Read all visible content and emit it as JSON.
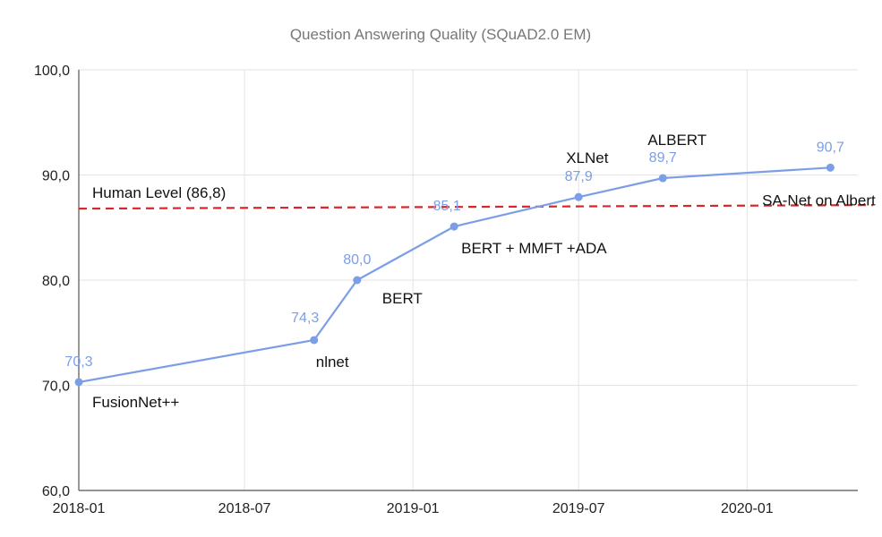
{
  "chart_data": {
    "type": "line",
    "title": "Question Answering Quality (SQuAD2.0 EM)",
    "xlabel": "",
    "ylabel": "",
    "ylim": [
      60,
      100
    ],
    "y_ticks": [
      "60,0",
      "70,0",
      "80,0",
      "90,0",
      "100,0"
    ],
    "y_tick_values": [
      60,
      70,
      80,
      90,
      100
    ],
    "x_ticks": [
      "2018-01",
      "2018-07",
      "2019-01",
      "2019-07",
      "2020-01"
    ],
    "xlim": [
      "2018-01-01",
      "2020-05-01"
    ],
    "grid": true,
    "series": [
      {
        "points": [
          {
            "x": "2018-01-01",
            "y": 70.3,
            "value_label": "70,3",
            "label": "FusionNet++"
          },
          {
            "x": "2018-09-15",
            "y": 74.3,
            "value_label": "74,3",
            "label": "nlnet"
          },
          {
            "x": "2018-11-01",
            "y": 80.0,
            "value_label": "80,0",
            "label": "BERT"
          },
          {
            "x": "2019-02-15",
            "y": 85.1,
            "value_label": "85,1",
            "label": "BERT + MMFT +ADA"
          },
          {
            "x": "2019-07-01",
            "y": 87.9,
            "value_label": "87,9",
            "label": "XLNet"
          },
          {
            "x": "2019-10-01",
            "y": 89.7,
            "value_label": "89,7",
            "label": "ALBERT"
          },
          {
            "x": "2020-04-01",
            "y": 90.7,
            "value_label": "90,7",
            "label": "SA-Net on Albert"
          }
        ]
      }
    ],
    "reference_line": {
      "y": 86.8,
      "label": "Human Level (86,8)"
    },
    "colors": {
      "series": "#7b9ee6",
      "reference": "#d9262c",
      "grid": "#e3e3e3"
    }
  }
}
